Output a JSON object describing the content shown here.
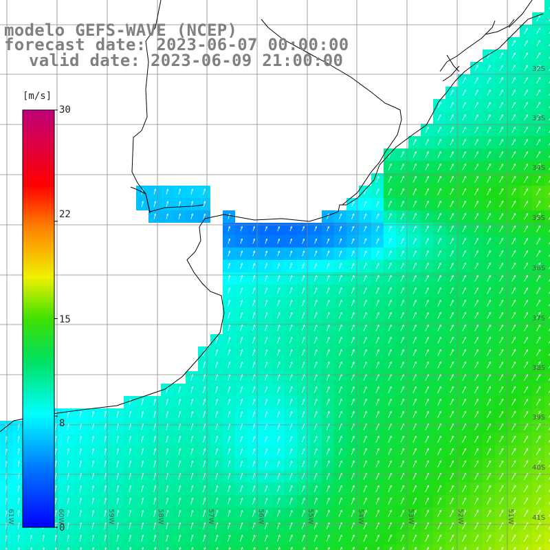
{
  "header": {
    "line1": "modelo GEFS-WAVE (NCEP)",
    "line2": "forecast date: 2023-06-07 00:00:00",
    "line3": "valid date: 2023-06-09 21:00:00"
  },
  "colorbar": {
    "unit": "[m/s]",
    "ticks": [
      "30",
      "22",
      "15",
      "8",
      "0"
    ],
    "min": 0,
    "max": 30,
    "tick_values": [
      30,
      22,
      15,
      8,
      0
    ]
  },
  "grid": {
    "lat_labels": [
      "32S",
      "33S",
      "34S",
      "35S",
      "36S",
      "37S",
      "38S",
      "39S",
      "40S",
      "41S"
    ],
    "lon_labels": [
      "61W",
      "60W",
      "59W",
      "58W",
      "57W",
      "56W",
      "55W",
      "54W",
      "53W",
      "52W",
      "51W"
    ]
  },
  "field": {
    "variable": "wind speed",
    "direction": "southerly, arrows pointing north-northeast",
    "colors": {
      "calm_blue": "#0030ff",
      "cyan": "#00e6ff",
      "green": "#00e640",
      "yellow": "#f2f200",
      "land": "#ffffff",
      "grid": "#808080"
    }
  }
}
